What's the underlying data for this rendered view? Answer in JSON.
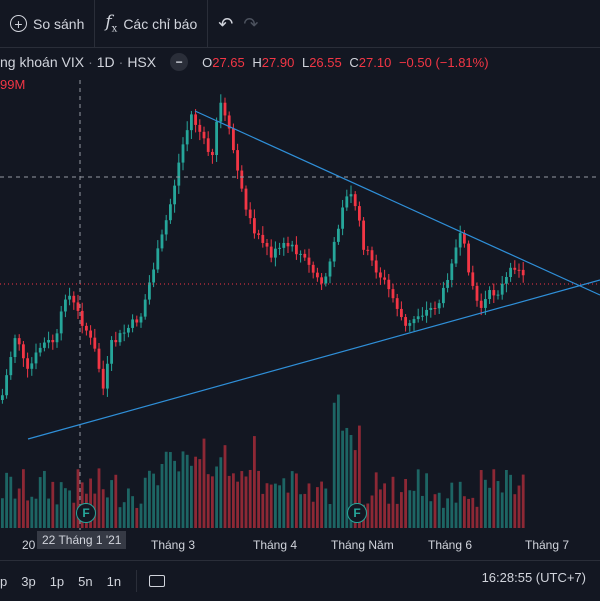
{
  "toolbar": {
    "compare_label": "So sánh",
    "indicators_label": "Các chỉ báo"
  },
  "legend": {
    "symbol": "ng khoán VIX",
    "interval": "1D",
    "exchange": "HSX",
    "open_key": "O",
    "open": "27.65",
    "high_key": "H",
    "high": "27.90",
    "low_key": "L",
    "low": "26.55",
    "close_key": "C",
    "close": "27.10",
    "change": "−0.50 (−1.81%)",
    "volume_partial": "99M"
  },
  "xaxis": {
    "labels": [
      "20",
      "Tháng 3",
      "Tháng 4",
      "Tháng Năm",
      "Tháng 6",
      "Tháng 7"
    ],
    "crosshair_date": "22 Tháng 1 '21"
  },
  "markers": {
    "f1": "F",
    "f2": "F"
  },
  "bottom": {
    "ranges": [
      "p",
      "3p",
      "1p",
      "5n",
      "1n"
    ],
    "clock": "16:28:55 (UTC+7)"
  },
  "colors": {
    "up": "#26a69a",
    "down": "#f23645",
    "trendline": "#2f8fd8",
    "background": "#131722"
  },
  "icons": {
    "compare": "plus-circle-icon",
    "indicators": "fx-icon",
    "undo": "undo-icon",
    "redo": "redo-icon",
    "hide": "minus-icon",
    "date-range": "calendar-range-icon"
  }
}
